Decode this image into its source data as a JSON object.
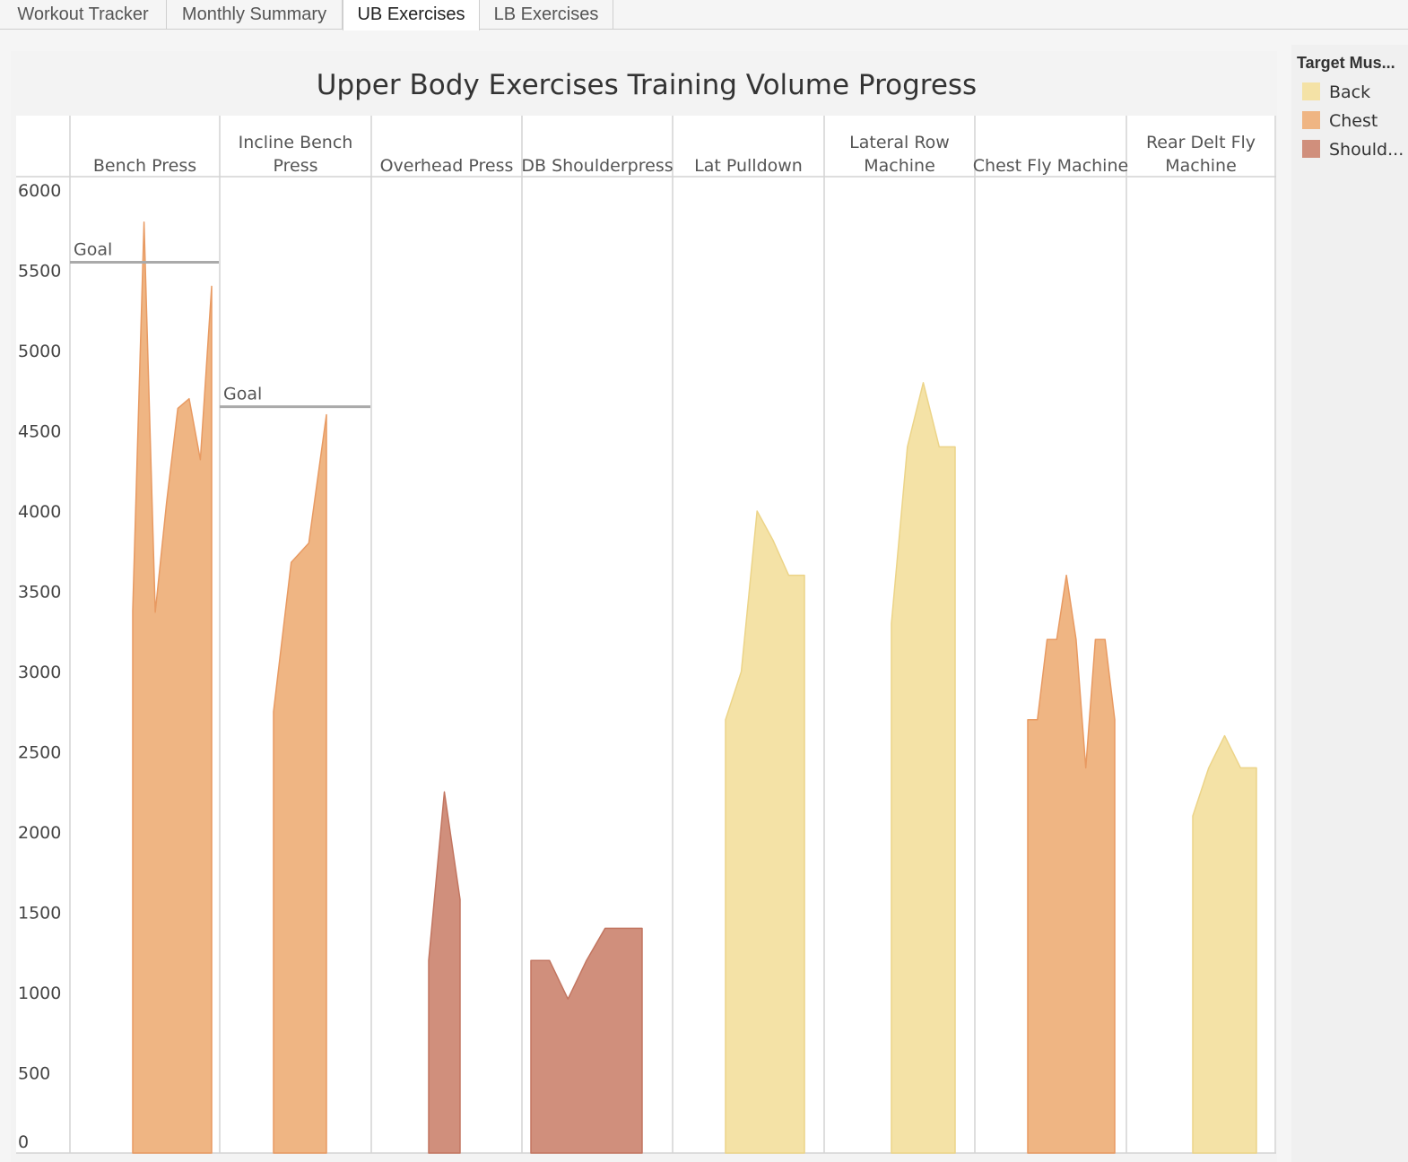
{
  "tabs": [
    {
      "label": "Workout Tracker",
      "active": false
    },
    {
      "label": "Monthly Summary",
      "active": false
    },
    {
      "label": "UB Exercises",
      "active": true
    },
    {
      "label": "LB Exercises",
      "active": false
    }
  ],
  "legend": {
    "title": "Target Mus...",
    "items": [
      {
        "label": "Back",
        "color": "#f4e2a6"
      },
      {
        "label": "Chest",
        "color": "#efb583"
      },
      {
        "label": "Should...",
        "color": "#d08f7c"
      }
    ]
  },
  "chart_data": {
    "type": "area",
    "title": "Upper Body Exercises Training Volume Progress",
    "ylim": [
      0,
      6000
    ],
    "yticks": [
      0,
      500,
      1000,
      1500,
      2000,
      2500,
      3000,
      3500,
      4000,
      4500,
      5000,
      5500,
      6000
    ],
    "grid": false,
    "legend_position": "right",
    "goal_label": "Goal",
    "panels": [
      {
        "label": [
          "Bench Press"
        ],
        "muscle": "Chest",
        "goal": 5550,
        "values": [
          3380,
          5800,
          3370,
          4050,
          4640,
          4700,
          4320,
          5400
        ]
      },
      {
        "label": [
          "Incline Bench",
          "Press"
        ],
        "muscle": "Chest",
        "goal": 4650,
        "values": [
          2750,
          3680,
          3800,
          4600
        ]
      },
      {
        "label": [
          "Overhead Press"
        ],
        "muscle": "Should...",
        "values": [
          1200,
          2250,
          1580
        ]
      },
      {
        "label": [
          "DB Shoulderpress"
        ],
        "muscle": "Should...",
        "values": [
          1200,
          1200,
          960,
          1200,
          1400,
          1400,
          1400
        ]
      },
      {
        "label": [
          "Lat Pulldown"
        ],
        "muscle": "Back",
        "values": [
          2700,
          3000,
          4000,
          3820,
          3600,
          3600
        ]
      },
      {
        "label": [
          "Lateral Row",
          "Machine"
        ],
        "muscle": "Back",
        "values": [
          3300,
          4400,
          4800,
          4400,
          4400
        ]
      },
      {
        "label": [
          "Chest Fly Machine"
        ],
        "muscle": "Chest",
        "values": [
          2700,
          2700,
          3200,
          3200,
          3600,
          3200,
          2400,
          3200,
          3200,
          2700
        ]
      },
      {
        "label": [
          "Rear Delt Fly",
          "Machine"
        ],
        "muscle": "Back",
        "values": [
          2100,
          2400,
          2600,
          2400,
          2400
        ]
      }
    ]
  }
}
